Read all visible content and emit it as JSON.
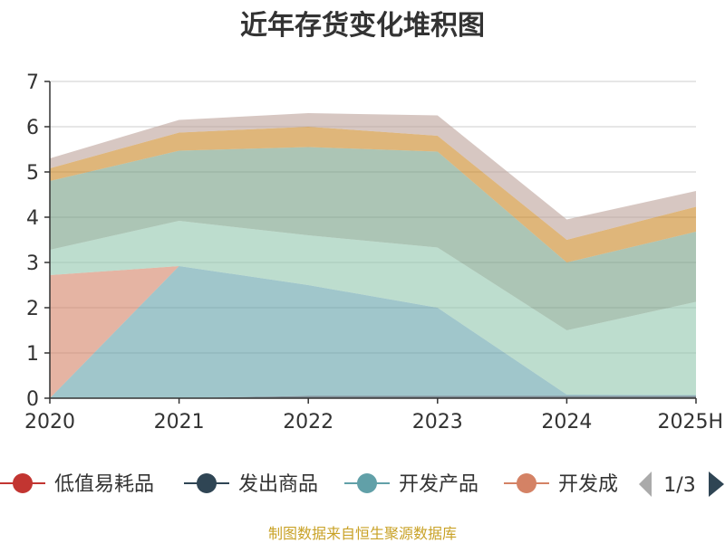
{
  "chart_data": {
    "type": "area",
    "stacked": true,
    "title": "近年存货变化堆积图",
    "xlabel": "",
    "ylabel": "",
    "x": [
      "2020",
      "2021",
      "2022",
      "2023",
      "2024",
      "2025H"
    ],
    "ylim": [
      0,
      7
    ],
    "yticks": [
      "0",
      "1",
      "2",
      "3",
      "4",
      "5",
      "6",
      "7"
    ],
    "grid": true,
    "legend_position": "bottom",
    "series": [
      {
        "name": "低值易耗品",
        "color": "#c23531",
        "values": [
          0.0,
          0.0,
          0.0,
          0.0,
          0.0,
          0.0
        ]
      },
      {
        "name": "发出商品",
        "color": "#2f4554",
        "values": [
          0.0,
          0.0,
          0.05,
          0.05,
          0.05,
          0.05
        ]
      },
      {
        "name": "开发产品",
        "color": "#61a0a8",
        "values": [
          0.0,
          2.92,
          2.45,
          1.95,
          0.03,
          0.02
        ]
      },
      {
        "name": "开发成本",
        "color": "#d48265",
        "values": [
          2.72,
          0.0,
          0.0,
          0.0,
          0.0,
          0.0
        ]
      },
      {
        "name": "",
        "color": "#91c7ae",
        "values": [
          0.56,
          1.0,
          1.1,
          1.33,
          1.42,
          2.06
        ]
      },
      {
        "name": "",
        "color": "#749f83",
        "values": [
          1.52,
          1.55,
          1.95,
          2.12,
          1.5,
          1.55
        ]
      },
      {
        "name": "",
        "color": "#ca8622",
        "values": [
          0.28,
          0.4,
          0.45,
          0.35,
          0.5,
          0.55
        ]
      },
      {
        "name": "",
        "color": "#bda29a",
        "values": [
          0.22,
          0.28,
          0.3,
          0.45,
          0.45,
          0.35
        ]
      }
    ]
  },
  "legend": {
    "visible_items": [
      {
        "label": "低值易耗品",
        "color": "#c23531"
      },
      {
        "label": "发出商品",
        "color": "#2f4554"
      },
      {
        "label": "开发产品",
        "color": "#61a0a8"
      },
      {
        "label": "开发成",
        "color": "#d48265"
      }
    ],
    "page_text": "1/3",
    "prev_color": "#aaaaaa",
    "next_color": "#2f4554"
  },
  "source_text": "制图数据来自恒生聚源数据库"
}
